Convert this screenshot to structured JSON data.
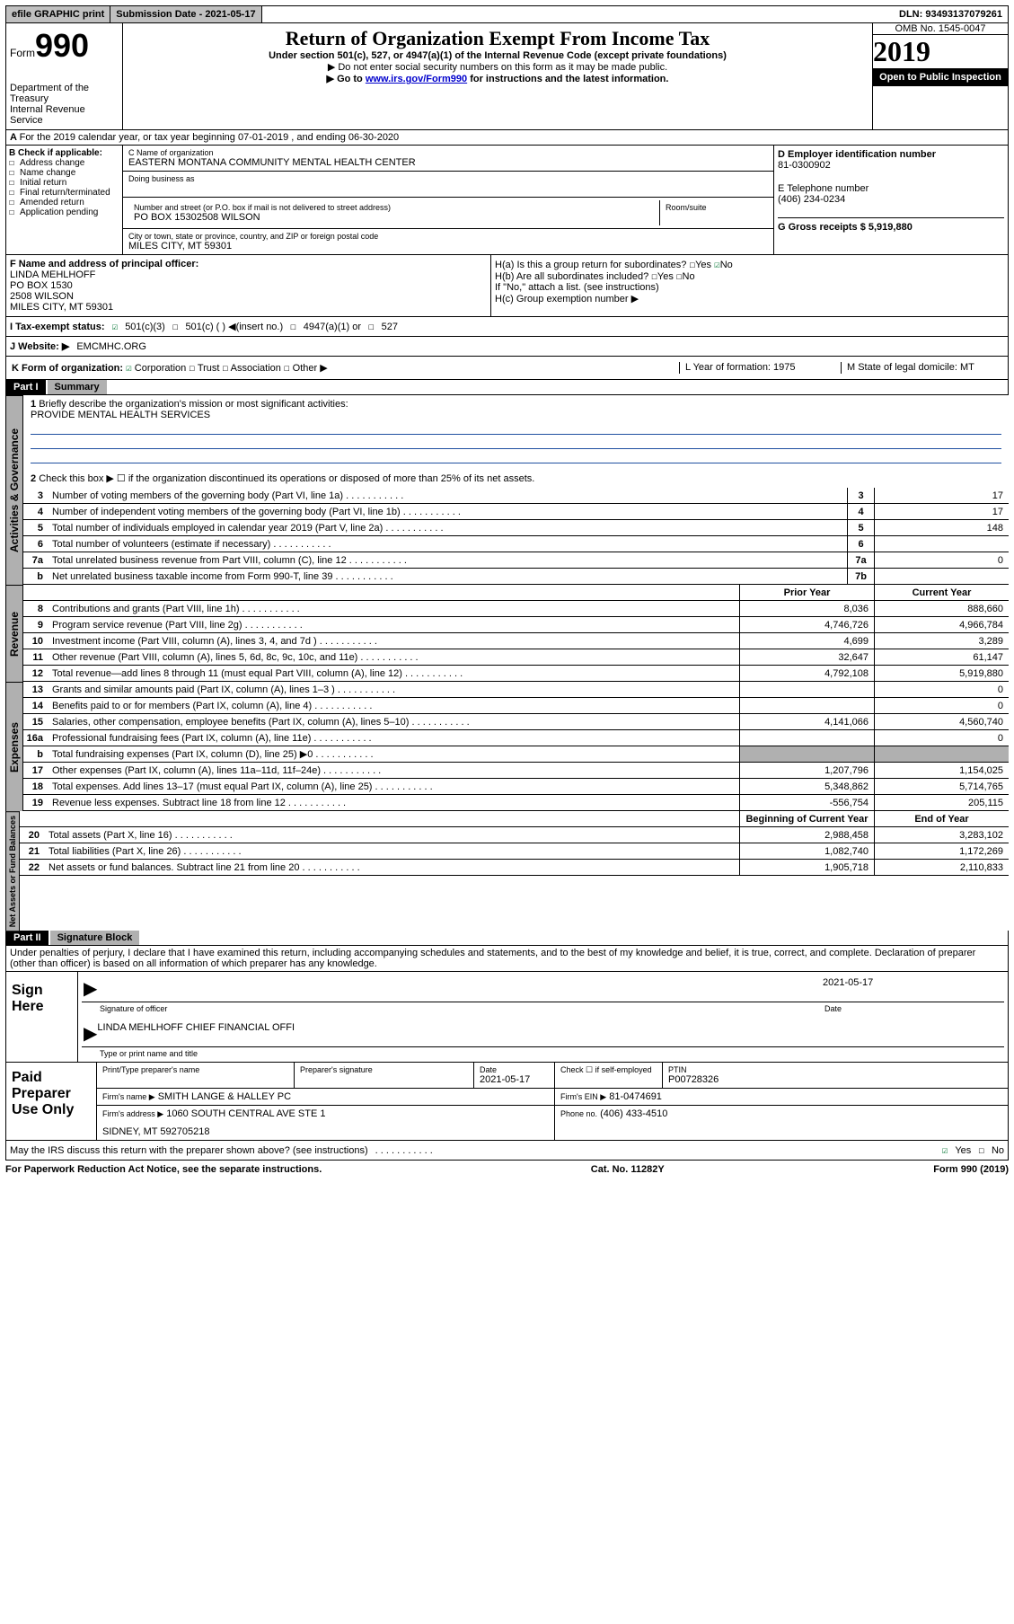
{
  "topbar": {
    "efile": "efile GRAPHIC print",
    "submission_label": "Submission Date - 2021-05-17",
    "dln": "DLN: 93493137079261"
  },
  "header": {
    "form_label": "Form",
    "form_number": "990",
    "dept": "Department of the Treasury",
    "irs": "Internal Revenue Service",
    "title": "Return of Organization Exempt From Income Tax",
    "subtitle": "Under section 501(c), 527, or 4947(a)(1) of the Internal Revenue Code (except private foundations)",
    "note1": "Do not enter social security numbers on this form as it may be made public.",
    "note2_pre": "Go to ",
    "note2_link": "www.irs.gov/Form990",
    "note2_post": " for instructions and the latest information.",
    "omb": "OMB No. 1545-0047",
    "year": "2019",
    "inspect": "Open to Public Inspection"
  },
  "rowA": {
    "text": "For the 2019 calendar year, or tax year beginning 07-01-2019   , and ending 06-30-2020"
  },
  "boxB": {
    "label": "B Check if applicable:",
    "opts": [
      "Address change",
      "Name change",
      "Initial return",
      "Final return/terminated",
      "Amended return",
      "Application pending"
    ]
  },
  "boxC": {
    "name_label": "C Name of organization",
    "name": "EASTERN MONTANA COMMUNITY MENTAL HEALTH CENTER",
    "dba_label": "Doing business as",
    "addr_label": "Number and street (or P.O. box if mail is not delivered to street address)",
    "room_label": "Room/suite",
    "addr": "PO BOX 15302508 WILSON",
    "city_label": "City or town, state or province, country, and ZIP or foreign postal code",
    "city": "MILES CITY, MT  59301"
  },
  "boxD": {
    "label": "D Employer identification number",
    "ein": "81-0300902"
  },
  "boxE": {
    "label": "E Telephone number",
    "phone": "(406) 234-0234"
  },
  "boxG": {
    "label": "G Gross receipts $ 5,919,880"
  },
  "boxF": {
    "label": "F  Name and address of principal officer:",
    "name": "LINDA MEHLHOFF",
    "l1": "PO BOX 1530",
    "l2": "2508 WILSON",
    "l3": "MILES CITY, MT  59301"
  },
  "boxH": {
    "a": "H(a)  Is this a group return for subordinates?",
    "b": "H(b)  Are all subordinates included?",
    "attach": "If \"No,\" attach a list. (see instructions)",
    "c": "H(c)  Group exemption number ▶",
    "yes": "Yes",
    "no": "No"
  },
  "taxStatus": {
    "label": "I  Tax-exempt status:",
    "opt1": "501(c)(3)",
    "opt2": "501(c) (  ) ◀(insert no.)",
    "opt3": "4947(a)(1) or",
    "opt4": "527"
  },
  "website": {
    "label": "J  Website: ▶",
    "url": "EMCMHC.ORG"
  },
  "rowK": {
    "label": "K Form of organization:",
    "corp": "Corporation",
    "trust": "Trust",
    "assoc": "Association",
    "other": "Other ▶",
    "L": "L Year of formation: 1975",
    "M": "M State of legal domicile: MT"
  },
  "part1": {
    "hdr": "Part I",
    "title": "Summary",
    "l1_label": "Briefly describe the organization's mission or most significant activities:",
    "l1_text": "PROVIDE MENTAL HEALTH SERVICES",
    "l2": "Check this box ▶ ☐  if the organization discontinued its operations or disposed of more than 25% of its net assets.",
    "lines_gov": [
      {
        "n": "3",
        "d": "Number of voting members of the governing body (Part VI, line 1a)",
        "b": "3",
        "v": "17"
      },
      {
        "n": "4",
        "d": "Number of independent voting members of the governing body (Part VI, line 1b)",
        "b": "4",
        "v": "17"
      },
      {
        "n": "5",
        "d": "Total number of individuals employed in calendar year 2019 (Part V, line 2a)",
        "b": "5",
        "v": "148"
      },
      {
        "n": "6",
        "d": "Total number of volunteers (estimate if necessary)",
        "b": "6",
        "v": ""
      },
      {
        "n": "7a",
        "d": "Total unrelated business revenue from Part VIII, column (C), line 12",
        "b": "7a",
        "v": "0"
      },
      {
        "n": "b",
        "d": "Net unrelated business taxable income from Form 990-T, line 39",
        "b": "7b",
        "v": ""
      }
    ],
    "prior_label": "Prior Year",
    "current_label": "Current Year",
    "revenue": [
      {
        "n": "8",
        "d": "Contributions and grants (Part VIII, line 1h)",
        "p": "8,036",
        "c": "888,660"
      },
      {
        "n": "9",
        "d": "Program service revenue (Part VIII, line 2g)",
        "p": "4,746,726",
        "c": "4,966,784"
      },
      {
        "n": "10",
        "d": "Investment income (Part VIII, column (A), lines 3, 4, and 7d )",
        "p": "4,699",
        "c": "3,289"
      },
      {
        "n": "11",
        "d": "Other revenue (Part VIII, column (A), lines 5, 6d, 8c, 9c, 10c, and 11e)",
        "p": "32,647",
        "c": "61,147"
      },
      {
        "n": "12",
        "d": "Total revenue—add lines 8 through 11 (must equal Part VIII, column (A), line 12)",
        "p": "4,792,108",
        "c": "5,919,880"
      }
    ],
    "expenses": [
      {
        "n": "13",
        "d": "Grants and similar amounts paid (Part IX, column (A), lines 1–3 )",
        "p": "",
        "c": "0"
      },
      {
        "n": "14",
        "d": "Benefits paid to or for members (Part IX, column (A), line 4)",
        "p": "",
        "c": "0"
      },
      {
        "n": "15",
        "d": "Salaries, other compensation, employee benefits (Part IX, column (A), lines 5–10)",
        "p": "4,141,066",
        "c": "4,560,740"
      },
      {
        "n": "16a",
        "d": "Professional fundraising fees (Part IX, column (A), line 11e)",
        "p": "",
        "c": "0"
      },
      {
        "n": "b",
        "d": "Total fundraising expenses (Part IX, column (D), line 25) ▶0",
        "p": "GREY",
        "c": "GREY"
      },
      {
        "n": "17",
        "d": "Other expenses (Part IX, column (A), lines 11a–11d, 11f–24e)",
        "p": "1,207,796",
        "c": "1,154,025"
      },
      {
        "n": "18",
        "d": "Total expenses. Add lines 13–17 (must equal Part IX, column (A), line 25)",
        "p": "5,348,862",
        "c": "5,714,765"
      },
      {
        "n": "19",
        "d": "Revenue less expenses. Subtract line 18 from line 12",
        "p": "-556,754",
        "c": "205,115"
      }
    ],
    "begin_label": "Beginning of Current Year",
    "end_label": "End of Year",
    "netassets": [
      {
        "n": "20",
        "d": "Total assets (Part X, line 16)",
        "p": "2,988,458",
        "c": "3,283,102"
      },
      {
        "n": "21",
        "d": "Total liabilities (Part X, line 26)",
        "p": "1,082,740",
        "c": "1,172,269"
      },
      {
        "n": "22",
        "d": "Net assets or fund balances. Subtract line 21 from line 20",
        "p": "1,905,718",
        "c": "2,110,833"
      }
    ],
    "vert_gov": "Activities & Governance",
    "vert_rev": "Revenue",
    "vert_exp": "Expenses",
    "vert_net": "Net Assets or Fund Balances"
  },
  "part2": {
    "hdr": "Part II",
    "title": "Signature Block",
    "decl": "Under penalties of perjury, I declare that I have examined this return, including accompanying schedules and statements, and to the best of my knowledge and belief, it is true, correct, and complete. Declaration of preparer (other than officer) is based on all information of which preparer has any knowledge.",
    "sign_here": "Sign Here",
    "sig_officer": "Signature of officer",
    "sig_date": "Date",
    "sig_date_val": "2021-05-17",
    "officer": "LINDA MEHLHOFF  CHIEF FINANCIAL OFFI",
    "type_name": "Type or print name and title",
    "paid_label": "Paid Preparer Use Only",
    "prep_name_label": "Print/Type preparer's name",
    "prep_sig_label": "Preparer's signature",
    "prep_date_label": "Date",
    "prep_date": "2021-05-17",
    "check_self": "Check ☐ if self-employed",
    "ptin_label": "PTIN",
    "ptin": "P00728326",
    "firm_name_label": "Firm's name   ▶",
    "firm_name": "SMITH LANGE & HALLEY PC",
    "firm_ein_label": "Firm's EIN ▶",
    "firm_ein": "81-0474691",
    "firm_addr_label": "Firm's address ▶",
    "firm_addr1": "1060 SOUTH CENTRAL AVE STE 1",
    "firm_addr2": "SIDNEY, MT  592705218",
    "firm_phone_label": "Phone no.",
    "firm_phone": "(406) 433-4510",
    "discuss": "May the IRS discuss this return with the preparer shown above? (see instructions)",
    "yes": "Yes",
    "no": "No"
  },
  "footer": {
    "pra": "For Paperwork Reduction Act Notice, see the separate instructions.",
    "cat": "Cat. No. 11282Y",
    "form": "Form 990 (2019)"
  }
}
